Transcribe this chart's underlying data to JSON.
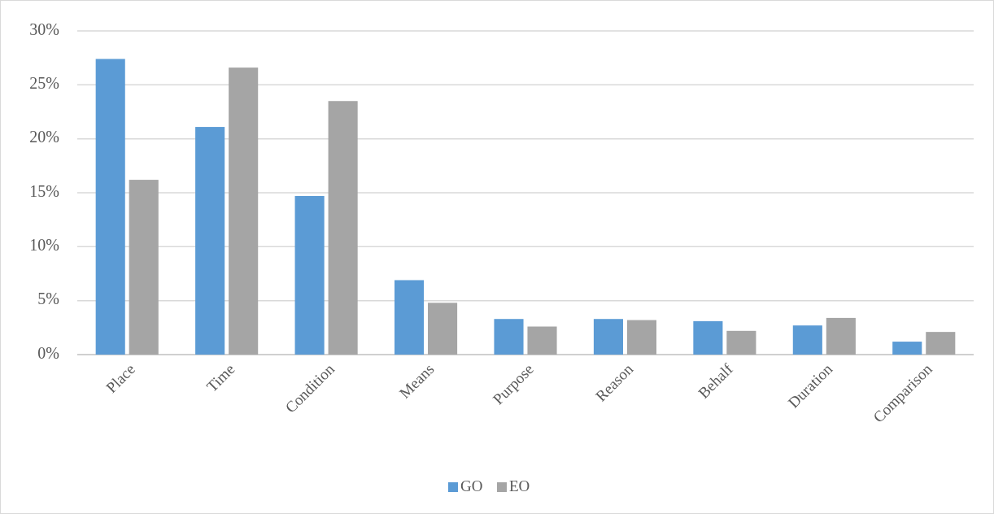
{
  "chart_data": {
    "type": "bar",
    "categories": [
      "Place",
      "Time",
      "Condition",
      "Means",
      "Purpose",
      "Reason",
      "Behalf",
      "Duration",
      "Comparison"
    ],
    "series": [
      {
        "name": "GO",
        "color": "#5b9bd5",
        "values": [
          27.4,
          21.1,
          14.7,
          6.9,
          3.3,
          3.3,
          3.1,
          2.7,
          1.2
        ]
      },
      {
        "name": "EO",
        "color": "#a5a5a5",
        "values": [
          16.2,
          26.6,
          23.5,
          4.8,
          2.6,
          3.2,
          2.2,
          3.4,
          2.1
        ]
      }
    ],
    "ylim": [
      0,
      30
    ],
    "yticks": [
      {
        "value": 0,
        "label": "0%"
      },
      {
        "value": 5,
        "label": "5%"
      },
      {
        "value": 10,
        "label": "10%"
      },
      {
        "value": 15,
        "label": "15%"
      },
      {
        "value": 20,
        "label": "20%"
      },
      {
        "value": 25,
        "label": "25%"
      },
      {
        "value": 30,
        "label": "30%"
      }
    ],
    "grid": "y",
    "legend": "bottom"
  }
}
